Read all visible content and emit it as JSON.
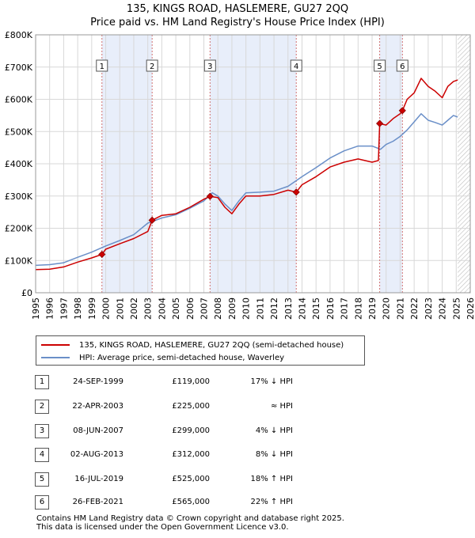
{
  "header": {
    "title": "135, KINGS ROAD, HASLEMERE, GU27 2QQ",
    "subtitle": "Price paid vs. HM Land Registry's House Price Index (HPI)"
  },
  "legend": {
    "property": "135, KINGS ROAD, HASLEMERE, GU27 2QQ (semi-detached house)",
    "hpi": "HPI: Average price, semi-detached house, Waverley"
  },
  "colors": {
    "property": "#cc0000",
    "hpi": "#6a8fc8",
    "shade": "#e8eefa",
    "grid": "#d8d8d8"
  },
  "chart_data": {
    "type": "line",
    "xlim": [
      1995,
      2026
    ],
    "ylim": [
      0,
      800000
    ],
    "x_ticks": [
      "1995",
      "1996",
      "1997",
      "1998",
      "1999",
      "2000",
      "2001",
      "2002",
      "2003",
      "2004",
      "2005",
      "2006",
      "2007",
      "2008",
      "2009",
      "2010",
      "2011",
      "2012",
      "2013",
      "2014",
      "2015",
      "2016",
      "2017",
      "2018",
      "2019",
      "2020",
      "2021",
      "2022",
      "2023",
      "2024",
      "2025",
      "2026"
    ],
    "y_ticks": [
      {
        "value": 0,
        "label": "£0"
      },
      {
        "value": 100000,
        "label": "£100K"
      },
      {
        "value": 200000,
        "label": "£200K"
      },
      {
        "value": 300000,
        "label": "£300K"
      },
      {
        "value": 400000,
        "label": "£400K"
      },
      {
        "value": 500000,
        "label": "£500K"
      },
      {
        "value": 600000,
        "label": "£600K"
      },
      {
        "value": 700000,
        "label": "£700K"
      },
      {
        "value": 800000,
        "label": "£800K"
      }
    ],
    "shaded_periods": [
      [
        1999.73,
        2003.31
      ],
      [
        2007.44,
        2013.59
      ],
      [
        2019.54,
        2021.16
      ]
    ],
    "future_hatch_from": 2025.1,
    "series": [
      {
        "name": "135, KINGS ROAD, HASLEMERE, GU27 2QQ (semi-detached house)",
        "points": [
          [
            1995,
            72000
          ],
          [
            1996,
            73000
          ],
          [
            1997,
            80000
          ],
          [
            1998,
            95000
          ],
          [
            1999,
            108000
          ],
          [
            1999.73,
            119000
          ],
          [
            2000,
            135000
          ],
          [
            2001,
            152000
          ],
          [
            2002,
            168000
          ],
          [
            2003,
            190000
          ],
          [
            2003.31,
            225000
          ],
          [
            2004,
            240000
          ],
          [
            2005,
            245000
          ],
          [
            2006,
            265000
          ],
          [
            2007,
            290000
          ],
          [
            2007.44,
            299000
          ],
          [
            2008,
            295000
          ],
          [
            2008.5,
            265000
          ],
          [
            2009,
            245000
          ],
          [
            2009.5,
            275000
          ],
          [
            2010,
            300000
          ],
          [
            2011,
            300000
          ],
          [
            2012,
            305000
          ],
          [
            2013,
            318000
          ],
          [
            2013.59,
            312000
          ],
          [
            2014,
            335000
          ],
          [
            2015,
            360000
          ],
          [
            2016,
            390000
          ],
          [
            2017,
            405000
          ],
          [
            2018,
            415000
          ],
          [
            2019,
            405000
          ],
          [
            2019.45,
            410000
          ],
          [
            2019.54,
            525000
          ],
          [
            2020,
            520000
          ],
          [
            2020.5,
            540000
          ],
          [
            2021,
            555000
          ],
          [
            2021.16,
            565000
          ],
          [
            2021.5,
            600000
          ],
          [
            2022,
            620000
          ],
          [
            2022.5,
            665000
          ],
          [
            2023,
            640000
          ],
          [
            2023.5,
            625000
          ],
          [
            2024,
            605000
          ],
          [
            2024.4,
            640000
          ],
          [
            2024.8,
            655000
          ],
          [
            2025.1,
            660000
          ]
        ]
      },
      {
        "name": "HPI: Average price, semi-detached house, Waverley",
        "points": [
          [
            1995,
            85000
          ],
          [
            1996,
            87000
          ],
          [
            1997,
            93000
          ],
          [
            1998,
            110000
          ],
          [
            1999,
            126000
          ],
          [
            2000,
            145000
          ],
          [
            2001,
            162000
          ],
          [
            2002,
            180000
          ],
          [
            2003,
            216000
          ],
          [
            2004,
            232000
          ],
          [
            2005,
            242000
          ],
          [
            2006,
            262000
          ],
          [
            2007,
            285000
          ],
          [
            2007.6,
            310000
          ],
          [
            2008,
            300000
          ],
          [
            2008.5,
            275000
          ],
          [
            2009,
            255000
          ],
          [
            2009.5,
            285000
          ],
          [
            2010,
            310000
          ],
          [
            2011,
            312000
          ],
          [
            2012,
            315000
          ],
          [
            2013,
            330000
          ],
          [
            2014,
            360000
          ],
          [
            2015,
            388000
          ],
          [
            2016,
            418000
          ],
          [
            2017,
            440000
          ],
          [
            2018,
            455000
          ],
          [
            2019,
            455000
          ],
          [
            2019.6,
            445000
          ],
          [
            2020,
            460000
          ],
          [
            2020.5,
            470000
          ],
          [
            2021,
            485000
          ],
          [
            2021.5,
            505000
          ],
          [
            2022,
            530000
          ],
          [
            2022.5,
            555000
          ],
          [
            2023,
            535000
          ],
          [
            2023.5,
            528000
          ],
          [
            2024,
            520000
          ],
          [
            2024.4,
            535000
          ],
          [
            2024.8,
            550000
          ],
          [
            2025.1,
            545000
          ]
        ]
      }
    ],
    "sales": [
      {
        "num": "1",
        "x": 1999.73,
        "y": 119000
      },
      {
        "num": "2",
        "x": 2003.31,
        "y": 225000
      },
      {
        "num": "3",
        "x": 2007.44,
        "y": 299000
      },
      {
        "num": "4",
        "x": 2013.59,
        "y": 312000
      },
      {
        "num": "5",
        "x": 2019.54,
        "y": 525000
      },
      {
        "num": "6",
        "x": 2021.16,
        "y": 565000
      }
    ]
  },
  "transactions": [
    {
      "num": "1",
      "date": "24-SEP-1999",
      "price": "£119,000",
      "hpi": "17% ↓ HPI"
    },
    {
      "num": "2",
      "date": "22-APR-2003",
      "price": "£225,000",
      "hpi": "≈ HPI"
    },
    {
      "num": "3",
      "date": "08-JUN-2007",
      "price": "£299,000",
      "hpi": "4% ↓ HPI"
    },
    {
      "num": "4",
      "date": "02-AUG-2013",
      "price": "£312,000",
      "hpi": "8% ↓ HPI"
    },
    {
      "num": "5",
      "date": "16-JUL-2019",
      "price": "£525,000",
      "hpi": "18% ↑ HPI"
    },
    {
      "num": "6",
      "date": "26-FEB-2021",
      "price": "£565,000",
      "hpi": "22% ↑ HPI"
    }
  ],
  "footer": {
    "line1": "Contains HM Land Registry data © Crown copyright and database right 2025.",
    "line2": "This data is licensed under the Open Government Licence v3.0."
  }
}
